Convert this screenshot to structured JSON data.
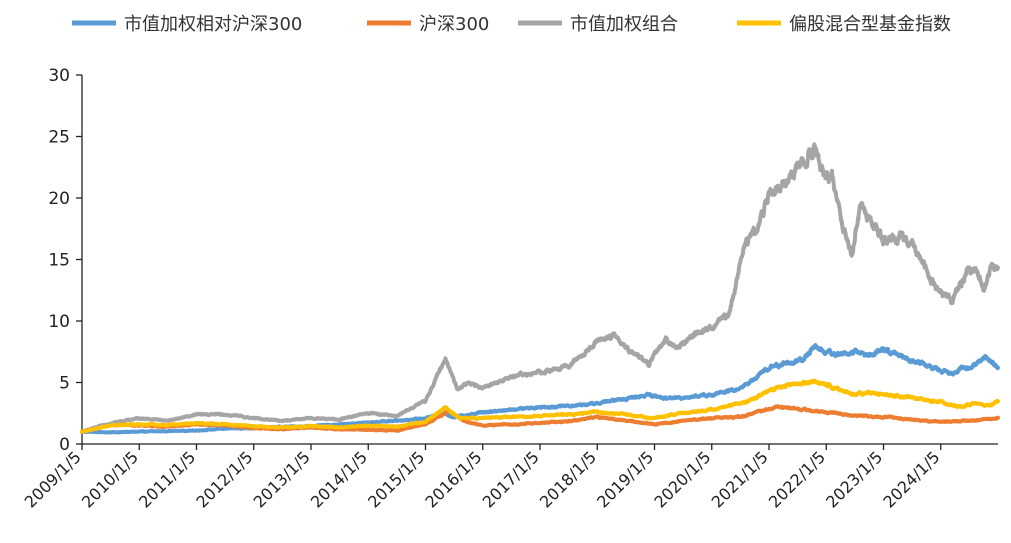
{
  "chart_data": {
    "type": "line",
    "title": "",
    "xlabel": "",
    "ylabel": "",
    "ylim": [
      0,
      30
    ],
    "yticks": [
      0,
      5,
      10,
      15,
      20,
      25,
      30
    ],
    "grid": false,
    "legend_position": "top",
    "x_tick_labels": [
      "2009/1/5",
      "2010/1/5",
      "2011/1/5",
      "2012/1/5",
      "2013/1/5",
      "2014/1/5",
      "2015/1/5",
      "2016/1/5",
      "2017/1/5",
      "2018/1/5",
      "2019/1/5",
      "2020/1/5",
      "2021/1/5",
      "2022/1/5",
      "2023/1/5",
      "2024/1/5"
    ],
    "x_start": 2009.0,
    "x_end": 2025.0,
    "series": [
      {
        "name": "市值加权相对沪深300",
        "color": "#5B9BD5",
        "points": [
          [
            2009.0,
            1.0
          ],
          [
            2009.5,
            0.95
          ],
          [
            2010.0,
            1.0
          ],
          [
            2010.5,
            1.05
          ],
          [
            2011.0,
            1.1
          ],
          [
            2011.5,
            1.25
          ],
          [
            2012.0,
            1.3
          ],
          [
            2012.5,
            1.4
          ],
          [
            2013.0,
            1.45
          ],
          [
            2013.5,
            1.6
          ],
          [
            2014.0,
            1.75
          ],
          [
            2014.5,
            1.9
          ],
          [
            2015.0,
            2.1
          ],
          [
            2015.3,
            2.5
          ],
          [
            2015.5,
            2.2
          ],
          [
            2015.75,
            2.4
          ],
          [
            2016.0,
            2.6
          ],
          [
            2016.5,
            2.8
          ],
          [
            2017.0,
            3.0
          ],
          [
            2017.5,
            3.1
          ],
          [
            2018.0,
            3.3
          ],
          [
            2018.5,
            3.7
          ],
          [
            2018.9,
            4.0
          ],
          [
            2019.2,
            3.7
          ],
          [
            2019.5,
            3.8
          ],
          [
            2020.0,
            4.0
          ],
          [
            2020.5,
            4.5
          ],
          [
            2020.8,
            5.5
          ],
          [
            2021.0,
            6.2
          ],
          [
            2021.3,
            6.6
          ],
          [
            2021.6,
            6.8
          ],
          [
            2021.8,
            8.1
          ],
          [
            2021.95,
            7.5
          ],
          [
            2022.2,
            7.3
          ],
          [
            2022.5,
            7.5
          ],
          [
            2022.8,
            7.2
          ],
          [
            2023.0,
            7.7
          ],
          [
            2023.4,
            7.0
          ],
          [
            2023.8,
            6.3
          ],
          [
            2024.0,
            6.0
          ],
          [
            2024.2,
            5.8
          ],
          [
            2024.5,
            6.3
          ],
          [
            2024.8,
            7.1
          ],
          [
            2025.0,
            6.2
          ]
        ]
      },
      {
        "name": "沪深300",
        "color": "#ED7D31",
        "points": [
          [
            2009.0,
            1.0
          ],
          [
            2009.5,
            1.6
          ],
          [
            2010.0,
            1.5
          ],
          [
            2010.5,
            1.4
          ],
          [
            2011.0,
            1.6
          ],
          [
            2011.5,
            1.5
          ],
          [
            2012.0,
            1.3
          ],
          [
            2012.5,
            1.2
          ],
          [
            2013.0,
            1.35
          ],
          [
            2013.5,
            1.2
          ],
          [
            2014.0,
            1.15
          ],
          [
            2014.5,
            1.1
          ],
          [
            2015.0,
            1.6
          ],
          [
            2015.4,
            2.7
          ],
          [
            2015.7,
            1.8
          ],
          [
            2016.0,
            1.5
          ],
          [
            2016.5,
            1.6
          ],
          [
            2017.0,
            1.7
          ],
          [
            2017.5,
            1.85
          ],
          [
            2018.0,
            2.2
          ],
          [
            2018.5,
            1.9
          ],
          [
            2019.0,
            1.6
          ],
          [
            2019.5,
            1.9
          ],
          [
            2020.0,
            2.1
          ],
          [
            2020.5,
            2.2
          ],
          [
            2021.0,
            2.9
          ],
          [
            2021.3,
            3.0
          ],
          [
            2021.7,
            2.7
          ],
          [
            2022.0,
            2.6
          ],
          [
            2022.5,
            2.3
          ],
          [
            2023.0,
            2.2
          ],
          [
            2023.5,
            2.0
          ],
          [
            2024.0,
            1.8
          ],
          [
            2024.5,
            1.9
          ],
          [
            2025.0,
            2.1
          ]
        ]
      },
      {
        "name": "市值加权组合",
        "color": "#A5A5A5",
        "points": [
          [
            2009.0,
            1.0
          ],
          [
            2009.5,
            1.7
          ],
          [
            2010.0,
            2.1
          ],
          [
            2010.5,
            1.9
          ],
          [
            2011.0,
            2.4
          ],
          [
            2011.5,
            2.4
          ],
          [
            2012.0,
            2.1
          ],
          [
            2012.5,
            1.9
          ],
          [
            2013.0,
            2.1
          ],
          [
            2013.5,
            2.0
          ],
          [
            2014.0,
            2.5
          ],
          [
            2014.5,
            2.3
          ],
          [
            2015.0,
            3.5
          ],
          [
            2015.35,
            7.0
          ],
          [
            2015.55,
            4.5
          ],
          [
            2015.75,
            5.0
          ],
          [
            2016.0,
            4.5
          ],
          [
            2016.5,
            5.5
          ],
          [
            2017.0,
            5.8
          ],
          [
            2017.5,
            6.3
          ],
          [
            2017.8,
            7.5
          ],
          [
            2018.0,
            8.5
          ],
          [
            2018.3,
            8.8
          ],
          [
            2018.6,
            7.5
          ],
          [
            2018.9,
            6.5
          ],
          [
            2019.2,
            8.5
          ],
          [
            2019.4,
            7.8
          ],
          [
            2019.7,
            9.0
          ],
          [
            2020.0,
            9.5
          ],
          [
            2020.3,
            10.5
          ],
          [
            2020.6,
            16.5
          ],
          [
            2020.8,
            17.5
          ],
          [
            2021.0,
            20.5
          ],
          [
            2021.3,
            21.5
          ],
          [
            2021.6,
            23.0
          ],
          [
            2021.8,
            24.5
          ],
          [
            2021.9,
            22.0
          ],
          [
            2022.1,
            21.5
          ],
          [
            2022.3,
            17.5
          ],
          [
            2022.45,
            15.5
          ],
          [
            2022.6,
            19.5
          ],
          [
            2022.8,
            18.0
          ],
          [
            2023.0,
            16.5
          ],
          [
            2023.3,
            17.0
          ],
          [
            2023.5,
            16.0
          ],
          [
            2023.8,
            13.5
          ],
          [
            2024.0,
            12.5
          ],
          [
            2024.2,
            11.5
          ],
          [
            2024.4,
            13.5
          ],
          [
            2024.6,
            14.5
          ],
          [
            2024.75,
            12.5
          ],
          [
            2024.9,
            14.5
          ],
          [
            2025.0,
            14.0
          ]
        ]
      },
      {
        "name": "偏股混合型基金指数",
        "color": "#FFC000",
        "points": [
          [
            2009.0,
            1.0
          ],
          [
            2009.5,
            1.5
          ],
          [
            2010.0,
            1.6
          ],
          [
            2010.5,
            1.55
          ],
          [
            2011.0,
            1.7
          ],
          [
            2011.5,
            1.6
          ],
          [
            2012.0,
            1.45
          ],
          [
            2012.5,
            1.35
          ],
          [
            2013.0,
            1.45
          ],
          [
            2013.5,
            1.35
          ],
          [
            2014.0,
            1.5
          ],
          [
            2014.5,
            1.4
          ],
          [
            2015.0,
            1.8
          ],
          [
            2015.35,
            3.0
          ],
          [
            2015.6,
            2.1
          ],
          [
            2016.0,
            2.1
          ],
          [
            2016.5,
            2.2
          ],
          [
            2017.0,
            2.3
          ],
          [
            2017.5,
            2.4
          ],
          [
            2018.0,
            2.6
          ],
          [
            2018.5,
            2.4
          ],
          [
            2019.0,
            2.1
          ],
          [
            2019.5,
            2.5
          ],
          [
            2020.0,
            2.8
          ],
          [
            2020.5,
            3.3
          ],
          [
            2020.8,
            3.8
          ],
          [
            2021.0,
            4.4
          ],
          [
            2021.3,
            4.7
          ],
          [
            2021.6,
            5.0
          ],
          [
            2021.9,
            5.0
          ],
          [
            2022.2,
            4.5
          ],
          [
            2022.5,
            4.0
          ],
          [
            2022.8,
            4.2
          ],
          [
            2023.0,
            4.0
          ],
          [
            2023.5,
            3.8
          ],
          [
            2024.0,
            3.4
          ],
          [
            2024.3,
            3.0
          ],
          [
            2024.6,
            3.3
          ],
          [
            2024.85,
            3.1
          ],
          [
            2025.0,
            3.5
          ]
        ]
      }
    ]
  }
}
